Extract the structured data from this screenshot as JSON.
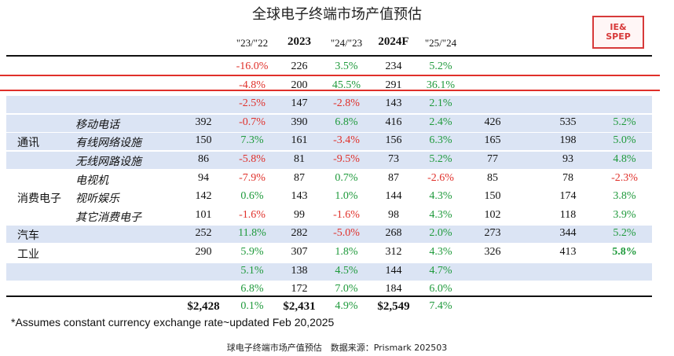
{
  "title": "全球电子终端市场产值预估",
  "stamp": {
    "line1": "IE&",
    "line2": "SPEP"
  },
  "headers": [
    "\"23/\"22",
    "2023",
    "\"24/\"23",
    "2024F",
    "\"25/\"24"
  ],
  "rows": [
    {
      "seg": "",
      "sub": "",
      "v22": "",
      "c23": "-16.0%",
      "v23": "226",
      "c24": "3.5%",
      "v24": "234",
      "c25": "5.2%",
      "v25": "",
      "v26": "",
      "c26": "",
      "shade": false,
      "faded": true
    },
    {
      "seg": "",
      "sub": "",
      "v22": "",
      "c23": "-4.8%",
      "v23": "200",
      "c24": "45.5%",
      "v24": "291",
      "c25": "36.1%",
      "v25": "",
      "v26": "",
      "c26": "",
      "shade": false,
      "faded": true
    },
    {
      "seg": "",
      "sub": "",
      "v22": "",
      "c23": "-2.5%",
      "v23": "147",
      "c24": "-2.8%",
      "v24": "143",
      "c25": "2.1%",
      "v25": "",
      "v26": "",
      "c26": "",
      "shade": true,
      "faded": true
    },
    {
      "seg": "",
      "sub": "移动电话",
      "v22": "392",
      "c23": "-0.7%",
      "v23": "390",
      "c24": "6.8%",
      "v24": "416",
      "c25": "2.4%",
      "v25": "426",
      "v26": "535",
      "c26": "5.2%",
      "shade": true
    },
    {
      "seg": "通讯",
      "sub": "有线网络设施",
      "v22": "150",
      "c23": "7.3%",
      "v23": "161",
      "c24": "-3.4%",
      "v24": "156",
      "c25": "6.3%",
      "v25": "165",
      "v26": "198",
      "c26": "5.0%",
      "shade": true
    },
    {
      "seg": "",
      "sub": "无线网路设施",
      "v22": "86",
      "c23": "-5.8%",
      "v23": "81",
      "c24": "-9.5%",
      "v24": "73",
      "c25": "5.2%",
      "v25": "77",
      "v26": "93",
      "c26": "4.8%",
      "shade": true
    },
    {
      "seg": "",
      "sub": "电视机",
      "v22": "94",
      "c23": "-7.9%",
      "v23": "87",
      "c24": "0.7%",
      "v24": "87",
      "c25": "-2.6%",
      "v25": "85",
      "v26": "78",
      "c26": "-2.3%",
      "shade": false
    },
    {
      "seg": "消费电子",
      "sub": "视听娱乐",
      "v22": "142",
      "c23": "0.6%",
      "v23": "143",
      "c24": "1.0%",
      "v24": "144",
      "c25": "4.3%",
      "v25": "150",
      "v26": "174",
      "c26": "3.8%",
      "shade": false
    },
    {
      "seg": "",
      "sub": "其它消费电子",
      "v22": "101",
      "c23": "-1.6%",
      "v23": "99",
      "c24": "-1.6%",
      "v24": "98",
      "c25": "4.3%",
      "v25": "102",
      "v26": "118",
      "c26": "3.9%",
      "shade": false
    },
    {
      "seg": "汽车",
      "sub": "",
      "v22": "252",
      "c23": "11.8%",
      "v23": "282",
      "c24": "-5.0%",
      "v24": "268",
      "c25": "2.0%",
      "v25": "273",
      "v26": "344",
      "c26": "5.2%",
      "shade": true
    },
    {
      "seg": "工业",
      "sub": "",
      "v22": "290",
      "c23": "5.9%",
      "v23": "307",
      "c24": "1.8%",
      "v24": "312",
      "c25": "4.3%",
      "v25": "326",
      "v26": "413",
      "c26": "5.8%",
      "shade": false
    },
    {
      "seg": "",
      "sub": "",
      "v22": "",
      "c23": "5.1%",
      "v23": "138",
      "c24": "4.5%",
      "v24": "144",
      "c25": "4.7%",
      "v25": "",
      "v26": "",
      "c26": "",
      "shade": true,
      "faded": true
    },
    {
      "seg": "",
      "sub": "",
      "v22": "",
      "c23": "6.8%",
      "v23": "172",
      "c24": "7.0%",
      "v24": "184",
      "c25": "6.0%",
      "v25": "",
      "v26": "",
      "c26": "",
      "shade": false,
      "faded": true
    }
  ],
  "total": {
    "v22": "$2,428",
    "c23": "0.1%",
    "v23": "$2,431",
    "c24": "4.9%",
    "v24": "$2,549",
    "c25": "7.4%"
  },
  "note": "*Assumes constant currency exchange rate~updated Feb 20,2025",
  "footer": "球电子终端市场产值预估　数据来源：Prismark 202503",
  "colors": {
    "negative": "#e0302a",
    "positive": "#1f9a3c",
    "shade": "#dbe4f4",
    "stamp": "#d73a3a"
  }
}
